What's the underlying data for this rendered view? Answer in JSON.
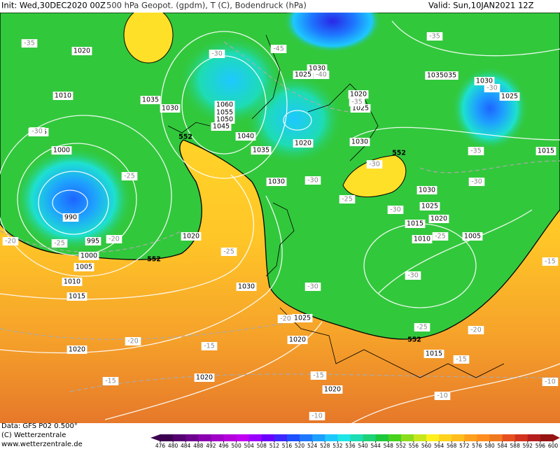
{
  "header": {
    "init": "Init: Wed,30DEC2020 00Z",
    "title": "500 hPa Geopot. (gpdm), T (C), Bodendruck (hPa)",
    "valid": "Valid: Sun,10JAN2021 12Z"
  },
  "footer": {
    "data": "Data: GFS P02 0.500°",
    "copyright": "(C) Wetterzentrale",
    "url": "www.wetterzentrale.de"
  },
  "map": {
    "pressure_labels": [
      1020,
      1010,
      1005,
      1000,
      990,
      995,
      1000,
      1005,
      1010,
      1015,
      1020,
      1020,
      1020,
      1030,
      1025,
      1020,
      1020,
      1035,
      1030,
      1060,
      1055,
      1050,
      1045,
      1040,
      1035,
      1030,
      1020,
      1030,
      1025,
      1020,
      1025,
      1030,
      1035035,
      1030,
      1025,
      1030,
      1025,
      1020,
      1015,
      1010,
      1005,
      1015,
      1015
    ],
    "temperature_labels": [
      -35,
      -35,
      -30,
      -25,
      -20,
      -25,
      -20,
      -30,
      -45,
      -40,
      -35,
      -30,
      -30,
      -25,
      -25,
      -30,
      -30,
      -25,
      -35,
      -30,
      -30,
      -25,
      -20,
      -20,
      -20,
      -15,
      -15,
      -15,
      -15,
      -10,
      -10,
      -10,
      -15,
      -30
    ],
    "geopotential_labels": [
      552,
      552,
      552,
      552
    ]
  },
  "colorbar": {
    "ticks": [
      476,
      480,
      484,
      488,
      492,
      496,
      500,
      504,
      508,
      512,
      516,
      520,
      524,
      528,
      532,
      536,
      540,
      544,
      548,
      552,
      556,
      560,
      564,
      568,
      572,
      576,
      580,
      584,
      588,
      592,
      596,
      600
    ],
    "colors": [
      "#3c0050",
      "#550070",
      "#6e0090",
      "#8a00b0",
      "#a000c8",
      "#b400dc",
      "#c000f0",
      "#9a00ff",
      "#6a00ff",
      "#3c28ff",
      "#1e50ff",
      "#1e78ff",
      "#1ea0ff",
      "#1ec8ff",
      "#1ee6e6",
      "#1edcb4",
      "#1ed278",
      "#1ec83c",
      "#46d21e",
      "#8cdc1e",
      "#c8e61e",
      "#fff01e",
      "#ffd21e",
      "#ffbe1e",
      "#ffa01e",
      "#ff8c1e",
      "#f0781e",
      "#e6501e",
      "#d2321e",
      "#b41e1e",
      "#961414"
    ]
  }
}
